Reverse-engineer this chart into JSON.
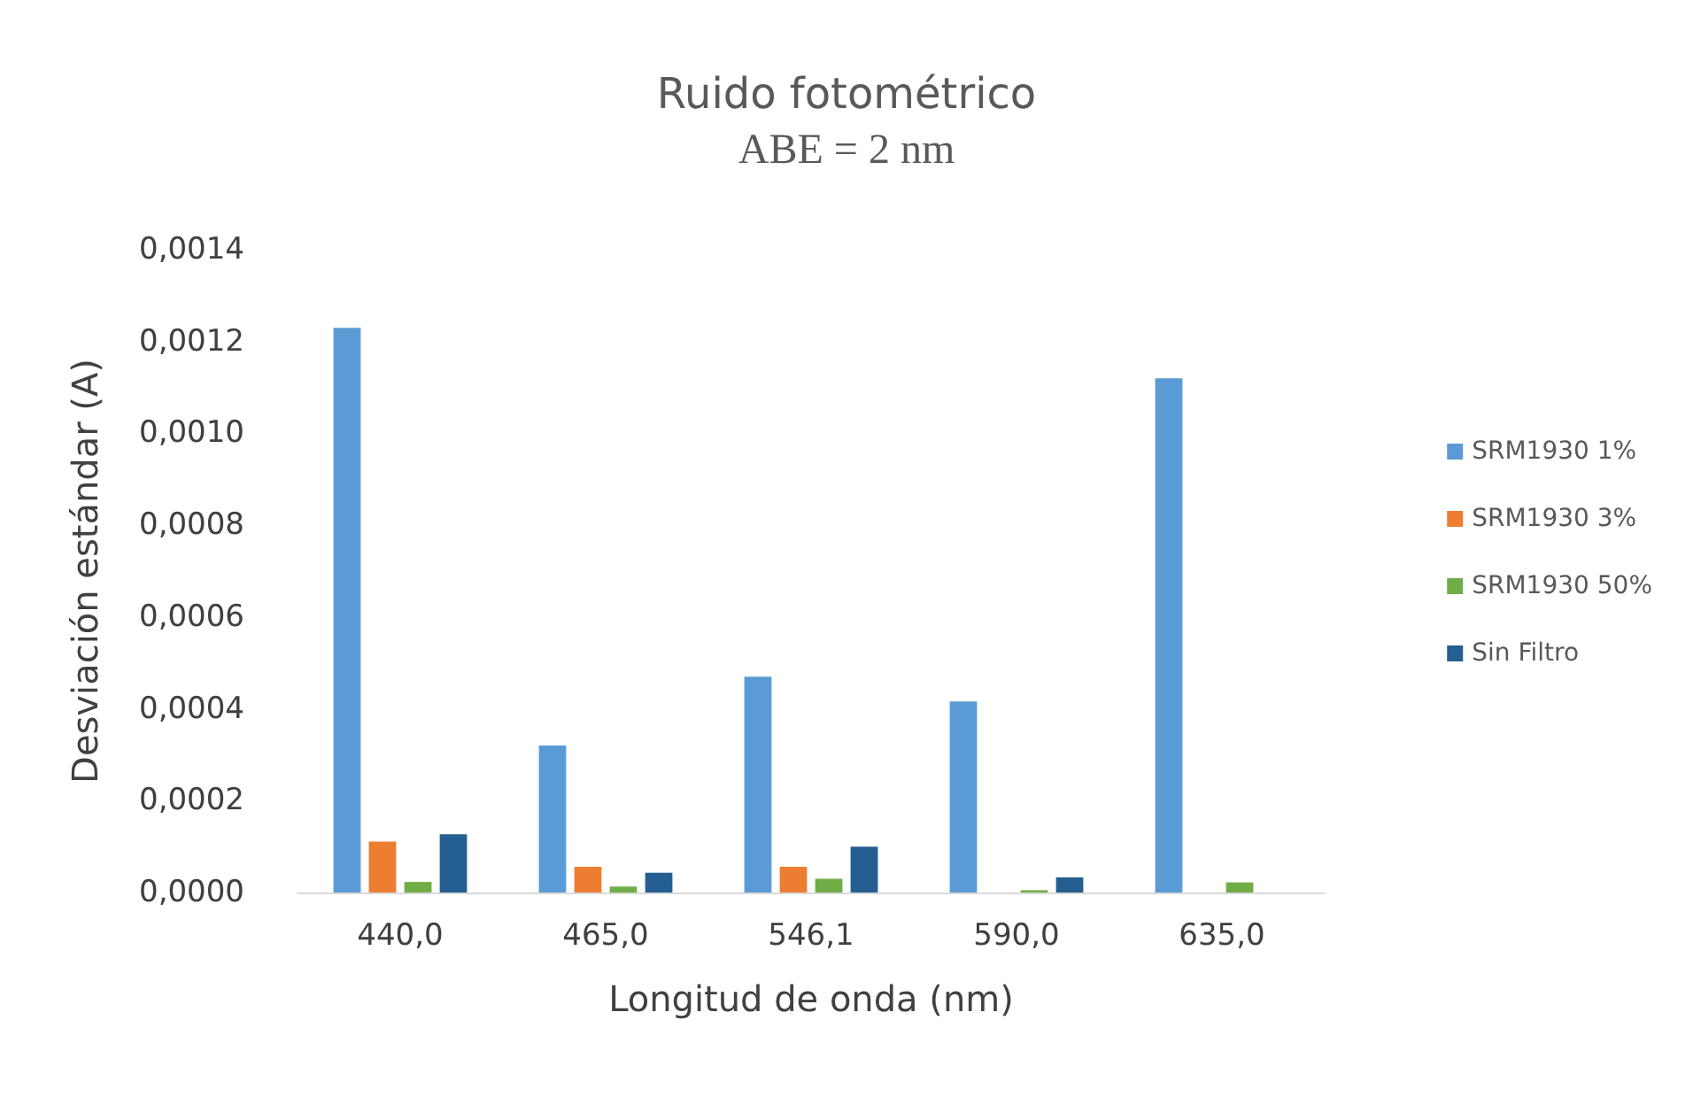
{
  "chart_data": {
    "type": "bar",
    "title": "Ruido fotométrico",
    "subtitle": "ABE = 2 nm",
    "xlabel": "Longitud de onda (nm)",
    "ylabel": "Desviación estándar (A)",
    "categories": [
      "440,0",
      "465,0",
      "546,1",
      "590,0",
      "635,0"
    ],
    "series": [
      {
        "name": "SRM1930 1%",
        "color": "#5b9bd5",
        "values": [
          0.00123,
          0.00032,
          0.00047,
          0.000416,
          0.00112
        ]
      },
      {
        "name": "SRM1930 3%",
        "color": "#ed7d31",
        "values": [
          0.000111,
          5.6e-05,
          5.6e-05,
          null,
          null
        ]
      },
      {
        "name": "SRM1930 50%",
        "color": "#70ad47",
        "values": [
          2.3e-05,
          1.3e-05,
          3e-05,
          5e-06,
          2.2e-05
        ]
      },
      {
        "name": "Sin Filtro",
        "color": "#255e91",
        "values": [
          0.000127,
          4.3e-05,
          0.0001,
          3.3e-05,
          null
        ]
      }
    ],
    "ylim": [
      0,
      0.0014
    ],
    "yticks": [
      {
        "value": 0,
        "label": "0,0000"
      },
      {
        "value": 0.0002,
        "label": "0,0002"
      },
      {
        "value": 0.0004,
        "label": "0,0004"
      },
      {
        "value": 0.0006,
        "label": "0,0006"
      },
      {
        "value": 0.0008,
        "label": "0,0008"
      },
      {
        "value": 0.001,
        "label": "0,0010"
      },
      {
        "value": 0.0012,
        "label": "0,0012"
      },
      {
        "value": 0.0014,
        "label": "0,0014"
      }
    ],
    "grid": false,
    "legend": "right"
  }
}
